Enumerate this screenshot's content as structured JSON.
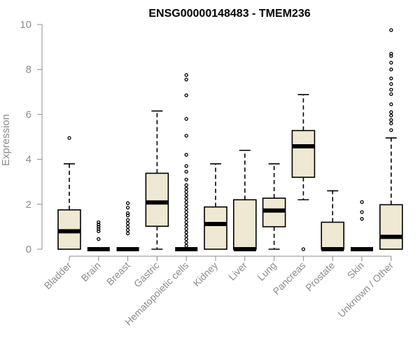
{
  "chart_data": {
    "type": "boxplot",
    "title": "ENSG00000148483 - TMEM236",
    "ylabel": "Expression",
    "xlabel": "",
    "ylim": [
      0,
      10
    ],
    "yticks": [
      0,
      2,
      4,
      6,
      8,
      10
    ],
    "grid": false,
    "box_color": "#efe8d2",
    "categories": [
      "Bladder",
      "Brain",
      "Breast",
      "Gastric",
      "Hematopoietic cells",
      "Kidney",
      "Liver",
      "Lung",
      "Pancreas",
      "Prostate",
      "Skin",
      "Unknown / Other"
    ],
    "boxes": [
      {
        "label": "Bladder",
        "min": 0,
        "q1": 0,
        "median": 0.8,
        "q3": 1.75,
        "max": 3.8,
        "outliers": [
          4.95
        ]
      },
      {
        "label": "Brain",
        "min": 0,
        "q1": 0,
        "median": 0,
        "q3": 0,
        "max": 0,
        "outliers": [
          0.45,
          0.8,
          0.9,
          1.0,
          1.1,
          1.2
        ]
      },
      {
        "label": "Breast",
        "min": 0,
        "q1": 0,
        "median": 0,
        "q3": 0,
        "max": 0,
        "outliers": [
          0.7,
          0.85,
          1.0,
          1.15,
          1.3,
          1.5,
          1.6,
          1.85,
          2.05
        ]
      },
      {
        "label": "Gastric",
        "min": 0,
        "q1": 1.02,
        "median": 2.08,
        "q3": 3.38,
        "max": 6.15,
        "outliers": []
      },
      {
        "label": "Hematopoietic cells",
        "min": 0,
        "q1": 0,
        "median": 0,
        "q3": 0,
        "max": 0,
        "outliers": [
          0.15,
          0.3,
          0.45,
          0.6,
          0.75,
          0.9,
          1.05,
          1.2,
          1.35,
          1.5,
          1.65,
          1.8,
          1.95,
          2.1,
          2.25,
          2.4,
          2.55,
          2.7,
          2.85,
          3.1,
          3.45,
          3.7,
          4.2,
          5.05,
          5.8,
          6.85,
          7.55,
          7.75
        ]
      },
      {
        "label": "Kidney",
        "min": 0,
        "q1": 0,
        "median": 1.12,
        "q3": 1.88,
        "max": 3.8,
        "outliers": []
      },
      {
        "label": "Liver",
        "min": 0,
        "q1": 0,
        "median": 0,
        "q3": 2.2,
        "max": 4.4,
        "outliers": []
      },
      {
        "label": "Lung",
        "min": 0,
        "q1": 1.0,
        "median": 1.72,
        "q3": 2.27,
        "max": 3.8,
        "outliers": []
      },
      {
        "label": "Pancreas",
        "min": 2.2,
        "q1": 3.2,
        "median": 4.58,
        "q3": 5.28,
        "max": 6.88,
        "outliers": [
          0.0
        ]
      },
      {
        "label": "Prostate",
        "min": 0,
        "q1": 0,
        "median": 0,
        "q3": 1.2,
        "max": 2.6,
        "outliers": []
      },
      {
        "label": "Skin",
        "min": 0,
        "q1": 0,
        "median": 0,
        "q3": 0,
        "max": 0,
        "outliers": [
          1.35,
          1.65,
          2.1
        ]
      },
      {
        "label": "Unknown / Other",
        "min": 0,
        "q1": 0,
        "median": 0.55,
        "q3": 1.98,
        "max": 4.95,
        "outliers": [
          5.3,
          5.6,
          5.75,
          5.95,
          6.1,
          6.45,
          6.9,
          7.1,
          7.35,
          7.6,
          8.0,
          8.3,
          8.6,
          8.7,
          9.75
        ]
      }
    ]
  }
}
